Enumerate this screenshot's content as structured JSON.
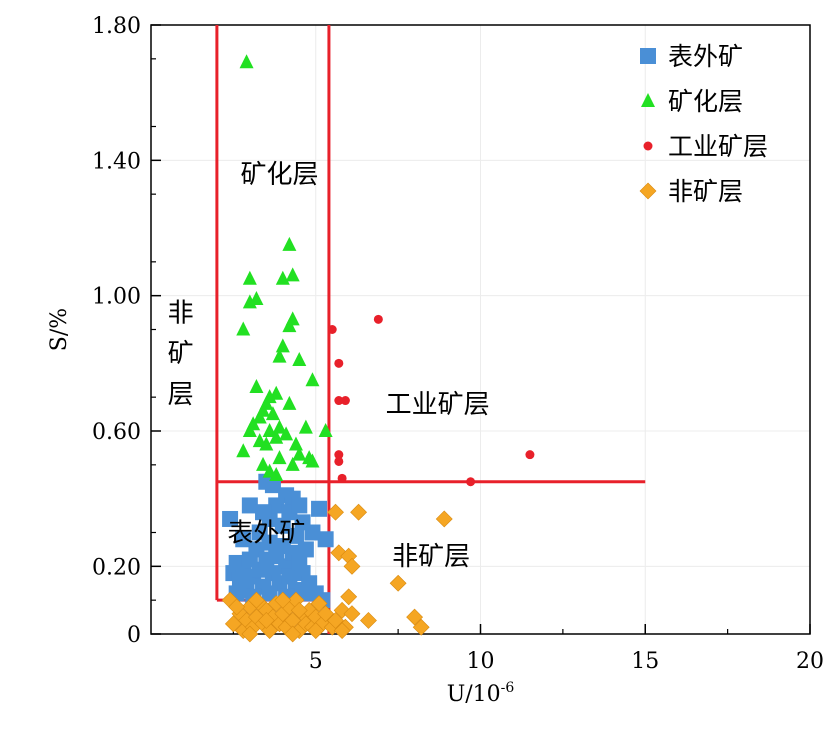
{
  "chart_data": {
    "type": "scatter",
    "xlabel_base": "U/10",
    "xlabel_exp": "-6",
    "ylabel": "S/%",
    "xlim": [
      0,
      20
    ],
    "ylim": [
      0,
      1.8
    ],
    "x_ticks": [
      {
        "v": 5,
        "label": "5"
      },
      {
        "v": 10,
        "label": "10"
      },
      {
        "v": 15,
        "label": "15"
      },
      {
        "v": 20,
        "label": "20"
      }
    ],
    "y_ticks": [
      {
        "v": 0,
        "label": "0"
      },
      {
        "v": 0.2,
        "label": "0.20"
      },
      {
        "v": 0.6,
        "label": "0.60"
      },
      {
        "v": 1.0,
        "label": "1.00"
      },
      {
        "v": 1.4,
        "label": "1.40"
      },
      {
        "v": 1.8,
        "label": "1.80"
      }
    ],
    "grid": true,
    "legend_position": "top-right",
    "boundaries": {
      "color": "#e8202a",
      "x_left": 2.0,
      "x_mid": 5.4,
      "y_low": 0.1,
      "y_high": 0.45,
      "x_right": 15
    },
    "region_labels": [
      {
        "text": "矿化层",
        "x": 3.9,
        "y": 1.36
      },
      {
        "text": "非",
        "x": 0.9,
        "y": 0.95
      },
      {
        "text": "矿",
        "x": 0.9,
        "y": 0.83
      },
      {
        "text": "层",
        "x": 0.9,
        "y": 0.71
      },
      {
        "text": "工业矿层",
        "x": 8.7,
        "y": 0.68
      },
      {
        "text": "表外矿",
        "x": 3.5,
        "y": 0.3
      },
      {
        "text": "非矿层",
        "x": 8.5,
        "y": 0.23
      }
    ],
    "series": [
      {
        "name": "表外矿",
        "marker": "square",
        "color": "#4a8fd6",
        "points": [
          [
            2.4,
            0.34
          ],
          [
            3.0,
            0.38
          ],
          [
            3.5,
            0.45
          ],
          [
            3.7,
            0.44
          ],
          [
            4.1,
            0.41
          ],
          [
            4.3,
            0.4
          ],
          [
            5.1,
            0.37
          ],
          [
            4.9,
            0.3
          ],
          [
            5.3,
            0.28
          ],
          [
            2.5,
            0.18
          ],
          [
            2.6,
            0.21
          ],
          [
            2.7,
            0.16
          ],
          [
            2.8,
            0.2
          ],
          [
            2.9,
            0.13
          ],
          [
            3.0,
            0.22
          ],
          [
            3.1,
            0.17
          ],
          [
            3.2,
            0.25
          ],
          [
            3.3,
            0.19
          ],
          [
            3.3,
            0.3
          ],
          [
            3.4,
            0.14
          ],
          [
            3.5,
            0.22
          ],
          [
            3.6,
            0.27
          ],
          [
            3.6,
            0.34
          ],
          [
            3.7,
            0.18
          ],
          [
            3.8,
            0.23
          ],
          [
            3.8,
            0.38
          ],
          [
            3.9,
            0.15
          ],
          [
            4.0,
            0.26
          ],
          [
            4.0,
            0.32
          ],
          [
            4.1,
            0.2
          ],
          [
            4.2,
            0.17
          ],
          [
            4.2,
            0.36
          ],
          [
            4.3,
            0.24
          ],
          [
            4.4,
            0.29
          ],
          [
            4.4,
            0.13
          ],
          [
            4.5,
            0.21
          ],
          [
            4.6,
            0.18
          ],
          [
            4.6,
            0.33
          ],
          [
            4.7,
            0.25
          ],
          [
            4.8,
            0.15
          ],
          [
            2.6,
            0.12
          ],
          [
            3.1,
            0.11
          ],
          [
            3.6,
            0.12
          ],
          [
            4.1,
            0.11
          ],
          [
            4.6,
            0.12
          ],
          [
            5.0,
            0.12
          ],
          [
            5.2,
            0.1
          ],
          [
            2.8,
            0.28
          ],
          [
            3.4,
            0.36
          ],
          [
            4.5,
            0.38
          ]
        ]
      },
      {
        "name": "矿化层",
        "marker": "triangle",
        "color": "#22e022",
        "points": [
          [
            2.9,
            1.69
          ],
          [
            4.2,
            1.15
          ],
          [
            3.0,
            1.05
          ],
          [
            4.0,
            1.05
          ],
          [
            4.3,
            1.06
          ],
          [
            3.0,
            0.98
          ],
          [
            3.2,
            0.99
          ],
          [
            4.3,
            0.93
          ],
          [
            4.2,
            0.91
          ],
          [
            2.8,
            0.9
          ],
          [
            4.0,
            0.85
          ],
          [
            3.9,
            0.82
          ],
          [
            4.5,
            0.81
          ],
          [
            4.9,
            0.75
          ],
          [
            3.2,
            0.73
          ],
          [
            3.8,
            0.71
          ],
          [
            3.6,
            0.7
          ],
          [
            3.5,
            0.68
          ],
          [
            4.2,
            0.68
          ],
          [
            3.4,
            0.66
          ],
          [
            3.7,
            0.65
          ],
          [
            3.3,
            0.64
          ],
          [
            3.1,
            0.62
          ],
          [
            3.9,
            0.61
          ],
          [
            3.6,
            0.6
          ],
          [
            4.7,
            0.61
          ],
          [
            3.0,
            0.6
          ],
          [
            4.1,
            0.59
          ],
          [
            3.8,
            0.58
          ],
          [
            3.3,
            0.57
          ],
          [
            3.5,
            0.56
          ],
          [
            4.4,
            0.56
          ],
          [
            2.8,
            0.54
          ],
          [
            4.5,
            0.53
          ],
          [
            3.9,
            0.52
          ],
          [
            4.8,
            0.52
          ],
          [
            3.4,
            0.5
          ],
          [
            4.3,
            0.5
          ],
          [
            4.9,
            0.51
          ],
          [
            3.6,
            0.48
          ],
          [
            3.8,
            0.47
          ],
          [
            5.3,
            0.6
          ]
        ]
      },
      {
        "name": "工业矿层",
        "marker": "circle",
        "color": "#e8202a",
        "points": [
          [
            6.9,
            0.93
          ],
          [
            5.5,
            0.9
          ],
          [
            5.7,
            0.8
          ],
          [
            5.7,
            0.69
          ],
          [
            5.9,
            0.69
          ],
          [
            5.7,
            0.53
          ],
          [
            5.7,
            0.51
          ],
          [
            5.8,
            0.46
          ],
          [
            11.5,
            0.53
          ],
          [
            9.7,
            0.45
          ]
        ]
      },
      {
        "name": "非矿层",
        "marker": "diamond",
        "color": "#f5a623",
        "points": [
          [
            8.9,
            0.34
          ],
          [
            5.6,
            0.36
          ],
          [
            6.3,
            0.36
          ],
          [
            5.7,
            0.24
          ],
          [
            6.0,
            0.23
          ],
          [
            6.1,
            0.2
          ],
          [
            7.5,
            0.15
          ],
          [
            6.0,
            0.11
          ],
          [
            8.0,
            0.05
          ],
          [
            8.2,
            0.02
          ],
          [
            6.6,
            0.04
          ],
          [
            5.4,
            0.05
          ],
          [
            5.8,
            0.07
          ],
          [
            6.1,
            0.06
          ],
          [
            2.4,
            0.1
          ],
          [
            2.5,
            0.03
          ],
          [
            2.7,
            0.06
          ],
          [
            2.8,
            0.01
          ],
          [
            2.9,
            0.04
          ],
          [
            3.0,
            0.08
          ],
          [
            3.1,
            0.02
          ],
          [
            3.2,
            0.05
          ],
          [
            3.3,
            0.09
          ],
          [
            3.4,
            0.03
          ],
          [
            3.5,
            0.07
          ],
          [
            3.6,
            0.01
          ],
          [
            3.7,
            0.05
          ],
          [
            3.8,
            0.09
          ],
          [
            3.9,
            0.03
          ],
          [
            4.0,
            0.06
          ],
          [
            4.1,
            0.02
          ],
          [
            4.2,
            0.08
          ],
          [
            4.3,
            0.04
          ],
          [
            4.4,
            0.1
          ],
          [
            4.5,
            0.01
          ],
          [
            4.6,
            0.06
          ],
          [
            4.7,
            0.03
          ],
          [
            4.8,
            0.07
          ],
          [
            4.9,
            0.02
          ],
          [
            5.0,
            0.05
          ],
          [
            5.1,
            0.09
          ],
          [
            5.2,
            0.03
          ],
          [
            5.3,
            0.06
          ],
          [
            5.5,
            0.02
          ],
          [
            5.6,
            0.04
          ],
          [
            5.9,
            0.02
          ],
          [
            2.6,
            0.08
          ],
          [
            3.0,
            0.0
          ],
          [
            3.5,
            0.04
          ],
          [
            4.0,
            0.1
          ],
          [
            4.5,
            0.07
          ],
          [
            5.0,
            0.01
          ],
          [
            3.2,
            0.1
          ],
          [
            4.3,
            0.0
          ],
          [
            5.8,
            0.01
          ]
        ]
      }
    ]
  }
}
